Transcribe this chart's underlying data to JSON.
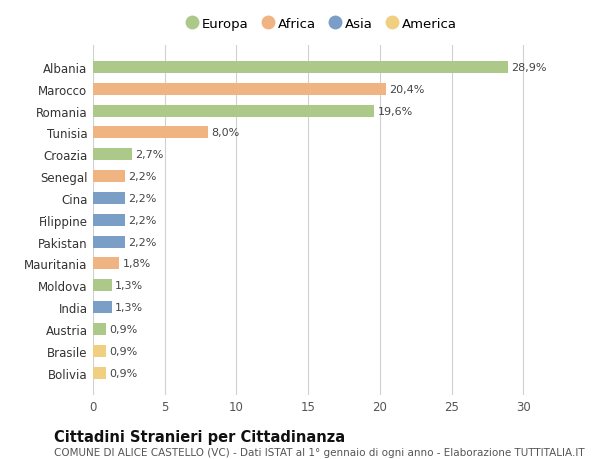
{
  "categories": [
    "Albania",
    "Marocco",
    "Romania",
    "Tunisia",
    "Croazia",
    "Senegal",
    "Cina",
    "Filippine",
    "Pakistan",
    "Mauritania",
    "Moldova",
    "India",
    "Austria",
    "Brasile",
    "Bolivia"
  ],
  "values": [
    28.9,
    20.4,
    19.6,
    8.0,
    2.7,
    2.2,
    2.2,
    2.2,
    2.2,
    1.8,
    1.3,
    1.3,
    0.9,
    0.9,
    0.9
  ],
  "labels": [
    "28,9%",
    "20,4%",
    "19,6%",
    "8,0%",
    "2,7%",
    "2,2%",
    "2,2%",
    "2,2%",
    "2,2%",
    "1,8%",
    "1,3%",
    "1,3%",
    "0,9%",
    "0,9%",
    "0,9%"
  ],
  "continents": [
    "Europa",
    "Africa",
    "Europa",
    "Africa",
    "Europa",
    "Africa",
    "Asia",
    "Asia",
    "Asia",
    "Africa",
    "Europa",
    "Asia",
    "Europa",
    "America",
    "America"
  ],
  "continent_colors": {
    "Europa": "#adc98a",
    "Africa": "#f0b482",
    "Asia": "#7b9ec7",
    "America": "#f0d080"
  },
  "legend_order": [
    "Europa",
    "Africa",
    "Asia",
    "America"
  ],
  "title": "Cittadini Stranieri per Cittadinanza",
  "subtitle": "COMUNE DI ALICE CASTELLO (VC) - Dati ISTAT al 1° gennaio di ogni anno - Elaborazione TUTTITALIA.IT",
  "xlim": [
    0,
    32
  ],
  "xticks": [
    0,
    5,
    10,
    15,
    20,
    25,
    30
  ],
  "bg_color": "#ffffff",
  "grid_color": "#d0d0d0",
  "bar_height": 0.55,
  "title_fontsize": 10.5,
  "subtitle_fontsize": 7.5,
  "label_fontsize": 8,
  "tick_fontsize": 8.5,
  "legend_fontsize": 9.5
}
